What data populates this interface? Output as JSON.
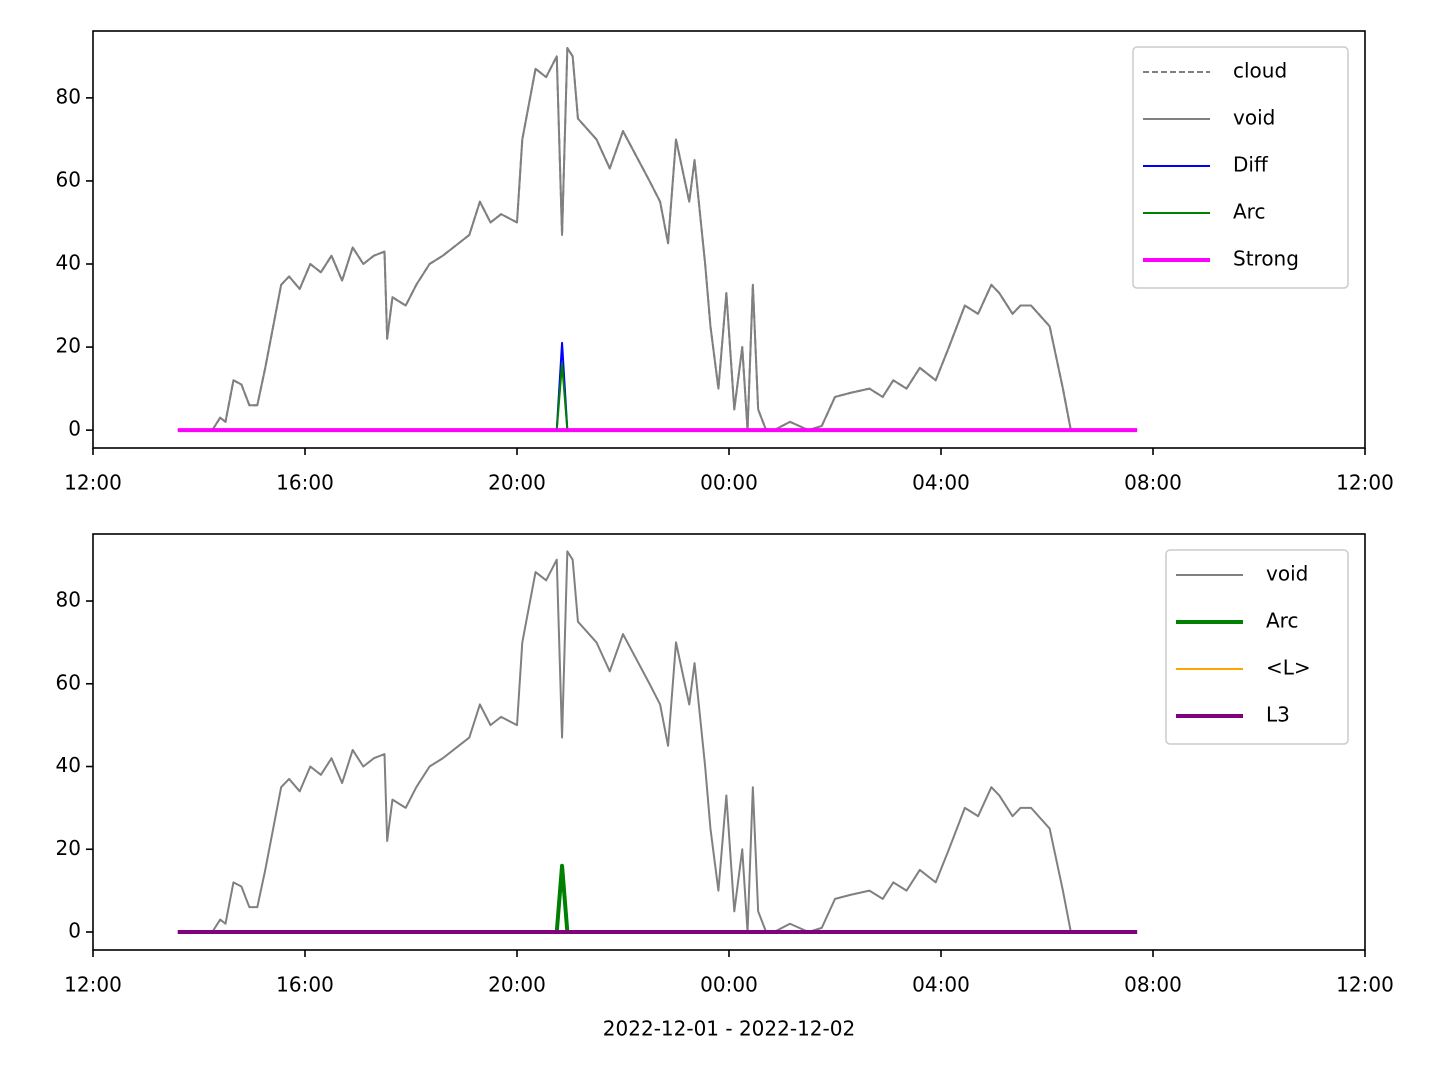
{
  "chart_data": [
    {
      "type": "line",
      "x": [
        14.25,
        14.4,
        14.5,
        14.65,
        14.8,
        14.95,
        15.1,
        15.25,
        15.4,
        15.55,
        15.7,
        15.9,
        16.1,
        16.3,
        16.5,
        16.7,
        16.9,
        17.1,
        17.3,
        17.5,
        17.55,
        17.65,
        17.9,
        18.1,
        18.35,
        18.6,
        18.9,
        19.1,
        19.3,
        19.5,
        19.7,
        20.0,
        20.1,
        20.35,
        20.55,
        20.75,
        20.85,
        20.95,
        21.05,
        21.15,
        21.5,
        21.75,
        22.0,
        22.25,
        22.5,
        22.7,
        22.85,
        23.0,
        23.25,
        23.35,
        23.55,
        23.65,
        23.8,
        23.95,
        24.1,
        24.25,
        24.35,
        24.45,
        24.55,
        24.7,
        24.85,
        25.15,
        25.5,
        25.75,
        26.0,
        26.3,
        26.65,
        26.9,
        27.1,
        27.35,
        27.6,
        27.9,
        28.15,
        28.45,
        28.7,
        28.95,
        29.1,
        29.35,
        29.5,
        29.7,
        30.05,
        30.3,
        30.45
      ],
      "series": [
        {
          "name": "cloud",
          "color": "#808080",
          "linestyle": "dashed",
          "linewidth": 2,
          "values": [
            0,
            3,
            2,
            12,
            11,
            6,
            6,
            15,
            25,
            35,
            37,
            34,
            40,
            38,
            42,
            36,
            44,
            40,
            42,
            43,
            22,
            32,
            30,
            35,
            40,
            42,
            45,
            47,
            55,
            50,
            52,
            50,
            70,
            87,
            85,
            90,
            47,
            92,
            90,
            75,
            70,
            63,
            72,
            66,
            60,
            55,
            45,
            70,
            55,
            65,
            40,
            25,
            10,
            33,
            5,
            20,
            0,
            35,
            5,
            0,
            0,
            2,
            0,
            1,
            8,
            9,
            10,
            8,
            12,
            10,
            15,
            12,
            20,
            30,
            28,
            35,
            33,
            28,
            30,
            30,
            25,
            10,
            0
          ]
        },
        {
          "name": "void",
          "color": "#808080",
          "linestyle": "solid",
          "linewidth": 2,
          "values": [
            0,
            3,
            2,
            12,
            11,
            6,
            6,
            15,
            25,
            35,
            37,
            34,
            40,
            38,
            42,
            36,
            44,
            40,
            42,
            43,
            22,
            32,
            30,
            35,
            40,
            42,
            45,
            47,
            55,
            50,
            52,
            50,
            70,
            87,
            85,
            90,
            47,
            92,
            90,
            75,
            70,
            63,
            72,
            66,
            60,
            55,
            45,
            70,
            55,
            65,
            40,
            25,
            10,
            33,
            5,
            20,
            0,
            35,
            5,
            0,
            0,
            2,
            0,
            1,
            8,
            9,
            10,
            8,
            12,
            10,
            15,
            12,
            20,
            30,
            28,
            35,
            33,
            28,
            30,
            30,
            25,
            10,
            0
          ]
        },
        {
          "name": "Diff",
          "color": "#0000ff",
          "linestyle": "solid",
          "linewidth": 2,
          "x": [
            13.6,
            20.75,
            20.85,
            20.95,
            31.7
          ],
          "values": [
            0,
            0,
            21,
            0,
            0
          ]
        },
        {
          "name": "Arc",
          "color": "#008000",
          "linestyle": "solid",
          "linewidth": 2,
          "x": [
            13.6,
            20.75,
            20.85,
            20.95,
            31.7
          ],
          "values": [
            0,
            0,
            16,
            0,
            0
          ]
        },
        {
          "name": "Strong",
          "color": "#ff00ff",
          "linestyle": "solid",
          "linewidth": 4,
          "x": [
            13.6,
            31.7
          ],
          "values": [
            0,
            0
          ]
        }
      ],
      "xlim": [
        12,
        36
      ],
      "xticks": [
        {
          "value": 12,
          "label": "12:00"
        },
        {
          "value": 16,
          "label": "16:00"
        },
        {
          "value": 20,
          "label": "20:00"
        },
        {
          "value": 24,
          "label": "00:00"
        },
        {
          "value": 28,
          "label": "04:00"
        },
        {
          "value": 32,
          "label": "08:00"
        },
        {
          "value": 36,
          "label": "12:00"
        }
      ],
      "ylim": [
        -4.3,
        96.1
      ],
      "yticks": [
        0,
        20,
        40,
        60,
        80
      ],
      "legend": "upper right"
    },
    {
      "type": "line",
      "x": [
        14.25,
        14.4,
        14.5,
        14.65,
        14.8,
        14.95,
        15.1,
        15.25,
        15.4,
        15.55,
        15.7,
        15.9,
        16.1,
        16.3,
        16.5,
        16.7,
        16.9,
        17.1,
        17.3,
        17.5,
        17.55,
        17.65,
        17.9,
        18.1,
        18.35,
        18.6,
        18.9,
        19.1,
        19.3,
        19.5,
        19.7,
        20.0,
        20.1,
        20.35,
        20.55,
        20.75,
        20.85,
        20.95,
        21.05,
        21.15,
        21.5,
        21.75,
        22.0,
        22.25,
        22.5,
        22.7,
        22.85,
        23.0,
        23.25,
        23.35,
        23.55,
        23.65,
        23.8,
        23.95,
        24.1,
        24.25,
        24.35,
        24.45,
        24.55,
        24.7,
        24.85,
        25.15,
        25.5,
        25.75,
        26.0,
        26.3,
        26.65,
        26.9,
        27.1,
        27.35,
        27.6,
        27.9,
        28.15,
        28.45,
        28.7,
        28.95,
        29.1,
        29.35,
        29.5,
        29.7,
        30.05,
        30.3,
        30.45
      ],
      "series": [
        {
          "name": "void",
          "color": "#808080",
          "linestyle": "solid",
          "linewidth": 2,
          "values": [
            0,
            3,
            2,
            12,
            11,
            6,
            6,
            15,
            25,
            35,
            37,
            34,
            40,
            38,
            42,
            36,
            44,
            40,
            42,
            43,
            22,
            32,
            30,
            35,
            40,
            42,
            45,
            47,
            55,
            50,
            52,
            50,
            70,
            87,
            85,
            90,
            47,
            92,
            90,
            75,
            70,
            63,
            72,
            66,
            60,
            55,
            45,
            70,
            55,
            65,
            40,
            25,
            10,
            33,
            5,
            20,
            0,
            35,
            5,
            0,
            0,
            2,
            0,
            1,
            8,
            9,
            10,
            8,
            12,
            10,
            15,
            12,
            20,
            30,
            28,
            35,
            33,
            28,
            30,
            30,
            25,
            10,
            0
          ]
        },
        {
          "name": "Arc",
          "color": "#008000",
          "linestyle": "solid",
          "linewidth": 4,
          "x": [
            13.6,
            20.75,
            20.85,
            20.95,
            31.7
          ],
          "values": [
            0,
            0,
            16,
            0,
            0
          ]
        },
        {
          "name": "<L>",
          "color": "#ffa500",
          "linestyle": "solid",
          "linewidth": 2,
          "x": [
            13.6,
            31.7
          ],
          "values": [
            0,
            0
          ]
        },
        {
          "name": "L3",
          "color": "#800080",
          "linestyle": "solid",
          "linewidth": 4,
          "x": [
            13.6,
            31.7
          ],
          "values": [
            0,
            0
          ]
        }
      ],
      "xlim": [
        12,
        36
      ],
      "xticks": [
        {
          "value": 12,
          "label": "12:00"
        },
        {
          "value": 16,
          "label": "16:00"
        },
        {
          "value": 20,
          "label": "20:00"
        },
        {
          "value": 24,
          "label": "00:00"
        },
        {
          "value": 28,
          "label": "04:00"
        },
        {
          "value": 32,
          "label": "08:00"
        },
        {
          "value": 36,
          "label": "12:00"
        }
      ],
      "ylim": [
        -4.35,
        96.2
      ],
      "yticks": [
        0,
        20,
        40,
        60,
        80
      ],
      "xlabel": "2022-12-01 - 2022-12-02",
      "legend": "upper right"
    }
  ]
}
